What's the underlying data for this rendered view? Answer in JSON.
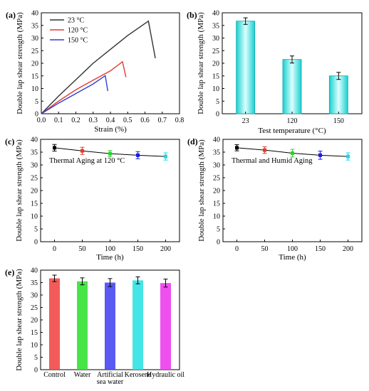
{
  "chart_data": [
    {
      "panel": "(a)",
      "type": "line",
      "xlabel": "Strain (%)",
      "ylabel": "Double lap shear strength (MPa)",
      "xlim": [
        0.0,
        0.8
      ],
      "ylim": [
        0,
        40
      ],
      "xticks": [
        "0.0",
        "0.1",
        "0.2",
        "0.3",
        "0.4",
        "0.5",
        "0.6",
        "0.7",
        "0.8"
      ],
      "yticks": [
        "0",
        "5",
        "10",
        "15",
        "20",
        "25",
        "30",
        "35",
        "40"
      ],
      "legend_position": "top-left",
      "series": [
        {
          "name": "23 °C",
          "color": "#333333",
          "x": [
            0,
            0.1,
            0.2,
            0.3,
            0.4,
            0.5,
            0.62,
            0.66
          ],
          "y": [
            0,
            7,
            13.5,
            20,
            25.5,
            31,
            36.7,
            22
          ]
        },
        {
          "name": "120 °C",
          "color": "#e23b2e",
          "x": [
            0,
            0.1,
            0.2,
            0.3,
            0.4,
            0.47,
            0.49
          ],
          "y": [
            0,
            5,
            9.5,
            13.3,
            17,
            20.6,
            14.5
          ]
        },
        {
          "name": "150 °C",
          "color": "#2f3fd8",
          "x": [
            0,
            0.1,
            0.2,
            0.3,
            0.37,
            0.385
          ],
          "y": [
            0,
            4.2,
            8,
            11.8,
            15.1,
            9
          ]
        }
      ]
    },
    {
      "panel": "(b)",
      "type": "bar",
      "xlabel": "Test temperature (°C)",
      "ylabel": "Double lap shear strength (MPa)",
      "ylim": [
        0,
        40
      ],
      "yticks": [
        "0",
        "5",
        "10",
        "15",
        "20",
        "25",
        "30",
        "35",
        "40"
      ],
      "categories": [
        "23",
        "120",
        "150"
      ],
      "values": [
        36.7,
        21.5,
        15.0
      ],
      "errors": [
        1.3,
        1.4,
        1.4
      ],
      "bar_color": "#1ad1d1"
    },
    {
      "panel": "(c)",
      "type": "scatter",
      "annotation": "Thermal Aging at 120 °C",
      "xlabel": "Time (h)",
      "ylabel": "Double lap shear strength (MPa)",
      "xlim": [
        -25,
        225
      ],
      "ylim": [
        0,
        40
      ],
      "xticks": [
        "0",
        "50",
        "100",
        "150",
        "200"
      ],
      "yticks": [
        "0",
        "5",
        "10",
        "15",
        "20",
        "25",
        "30",
        "35",
        "40"
      ],
      "x": [
        0,
        50,
        100,
        150,
        200
      ],
      "y": [
        36.7,
        35.5,
        34.4,
        33.8,
        33.3
      ],
      "errors": [
        1.3,
        1.4,
        1.2,
        1.4,
        1.4
      ],
      "point_colors": [
        "#000000",
        "#e03a2e",
        "#2bd12b",
        "#1a1ae0",
        "#19d8e8"
      ]
    },
    {
      "panel": "(d)",
      "type": "scatter",
      "annotation": "Thermal and Humid Aging",
      "xlabel": "Time (h)",
      "ylabel": "Double lap shear strength (MPa)",
      "xlim": [
        -25,
        225
      ],
      "ylim": [
        0,
        40
      ],
      "xticks": [
        "0",
        "50",
        "100",
        "150",
        "200"
      ],
      "yticks": [
        "0",
        "5",
        "10",
        "15",
        "20",
        "25",
        "30",
        "35",
        "40"
      ],
      "x": [
        0,
        50,
        100,
        150,
        200
      ],
      "y": [
        36.7,
        35.8,
        34.6,
        33.8,
        33.3
      ],
      "errors": [
        1.2,
        1.3,
        1.5,
        1.6,
        1.4
      ],
      "point_colors": [
        "#000000",
        "#e03a2e",
        "#2bd12b",
        "#1a1ae0",
        "#19d8e8"
      ]
    },
    {
      "panel": "(e)",
      "type": "bar",
      "ylabel": "Double lap shear strength (MPa)",
      "ylim": [
        0,
        40
      ],
      "yticks": [
        "0",
        "5",
        "10",
        "15",
        "20",
        "25",
        "30",
        "35",
        "40"
      ],
      "categories": [
        [
          "Control"
        ],
        [
          "Water"
        ],
        [
          "Artificial",
          "sea water"
        ],
        [
          "Kerosene"
        ],
        [
          "Hydraulic oil"
        ]
      ],
      "values": [
        36.7,
        35.5,
        35.0,
        35.9,
        34.8
      ],
      "errors": [
        1.3,
        1.4,
        1.6,
        1.4,
        1.6
      ],
      "bar_colors": [
        "#f24848",
        "#34e234",
        "#4848f2",
        "#32e2e2",
        "#ee3cee"
      ]
    }
  ]
}
